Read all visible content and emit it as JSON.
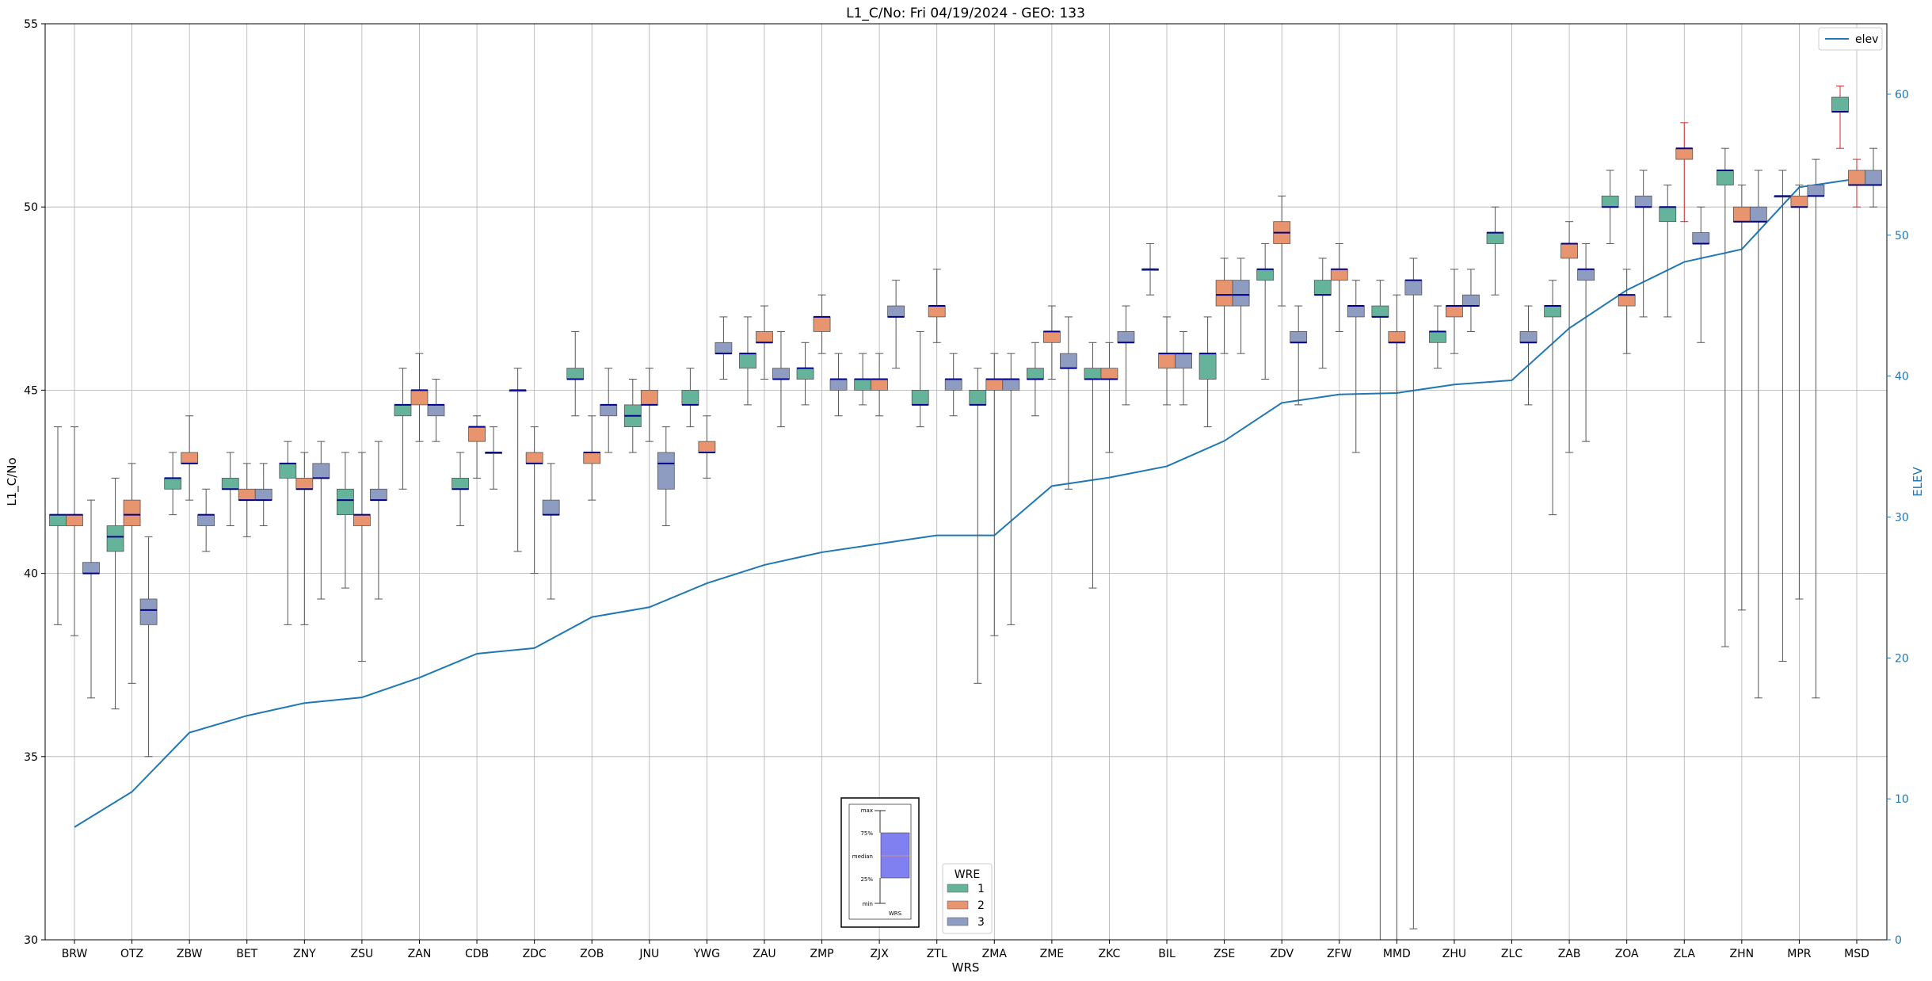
{
  "chart_data": {
    "type": "box",
    "title": "L1_C/No: Fri 04/19/2024 - GEO: 133",
    "xlabel": "WRS",
    "ylabel": "L1_C/No",
    "ylabel_right": "ELEV",
    "ylim": [
      30,
      55
    ],
    "ylim_right": [
      0,
      65
    ],
    "yticks": [
      30,
      35,
      40,
      45,
      50,
      55
    ],
    "yticks_right": [
      0,
      10,
      20,
      30,
      40,
      50,
      60
    ],
    "grid": true,
    "colors": {
      "1": "#66b39b",
      "2": "#e8946e",
      "3": "#8f9cc2",
      "median": "#00008b",
      "elev": "#1f77b4",
      "outlier_whisker": "#d62728"
    },
    "categories": [
      "BRW",
      "OTZ",
      "ZBW",
      "BET",
      "ZNY",
      "ZSU",
      "ZAN",
      "CDB",
      "ZDC",
      "ZOB",
      "JNU",
      "YWG",
      "ZAU",
      "ZMP",
      "ZJX",
      "ZTL",
      "ZMA",
      "ZME",
      "ZKC",
      "BIL",
      "ZSE",
      "ZDV",
      "ZFW",
      "MMD",
      "ZHU",
      "ZLC",
      "ZAB",
      "ZOA",
      "ZLA",
      "ZHN",
      "MPR",
      "MSD"
    ],
    "elev_series": {
      "name": "elev",
      "values": [
        8.0,
        10.5,
        14.7,
        15.9,
        16.8,
        17.2,
        18.6,
        20.3,
        20.7,
        22.9,
        23.6,
        25.3,
        26.6,
        27.5,
        28.1,
        28.7,
        28.7,
        32.2,
        32.8,
        33.6,
        35.4,
        38.1,
        38.7,
        38.8,
        39.4,
        39.7,
        43.4,
        46.1,
        48.1,
        49.0,
        53.4,
        54.0
      ]
    },
    "series": [
      {
        "name": "1",
        "boxes": [
          {
            "cat": "BRW",
            "min": 38.6,
            "q1": 41.3,
            "median": 41.6,
            "q3": 41.6,
            "max": 44
          },
          {
            "cat": "OTZ",
            "min": 36.3,
            "q1": 40.6,
            "median": 41.0,
            "q3": 41.3,
            "max": 42.6
          },
          {
            "cat": "ZBW",
            "min": 41.6,
            "q1": 42.3,
            "median": 42.6,
            "q3": 42.6,
            "max": 43.3
          },
          {
            "cat": "BET",
            "min": 41.3,
            "q1": 42.3,
            "median": 42.3,
            "q3": 42.6,
            "max": 43.3
          },
          {
            "cat": "ZNY",
            "min": 38.6,
            "q1": 42.6,
            "median": 43.0,
            "q3": 43.0,
            "max": 43.6
          },
          {
            "cat": "ZSU",
            "min": 39.6,
            "q1": 41.6,
            "median": 42.0,
            "q3": 42.3,
            "max": 43.3
          },
          {
            "cat": "ZAN",
            "min": 42.3,
            "q1": 44.3,
            "median": 44.6,
            "q3": 44.6,
            "max": 45.6
          },
          {
            "cat": "CDB",
            "min": 41.3,
            "q1": 42.3,
            "median": 42.3,
            "q3": 42.6,
            "max": 43.3
          },
          {
            "cat": "ZDC",
            "min": 40.6,
            "q1": 45.0,
            "median": 45.0,
            "q3": 45.0,
            "max": 45.6
          },
          {
            "cat": "ZOB",
            "min": 44.3,
            "q1": 45.3,
            "median": 45.3,
            "q3": 45.6,
            "max": 46.6
          },
          {
            "cat": "JNU",
            "min": 43.3,
            "q1": 44.0,
            "median": 44.3,
            "q3": 44.6,
            "max": 45.3
          },
          {
            "cat": "YWG",
            "min": 44.0,
            "q1": 44.6,
            "median": 44.6,
            "q3": 45.0,
            "max": 45.6
          },
          {
            "cat": "ZAU",
            "min": 44.6,
            "q1": 45.6,
            "median": 46.0,
            "q3": 46.0,
            "max": 47.0
          },
          {
            "cat": "ZMP",
            "min": 44.6,
            "q1": 45.3,
            "median": 45.6,
            "q3": 45.6,
            "max": 46.3
          },
          {
            "cat": "ZJX",
            "min": 44.6,
            "q1": 45.0,
            "median": 45.3,
            "q3": 45.3,
            "max": 46.0
          },
          {
            "cat": "ZTL",
            "min": 44.0,
            "q1": 44.6,
            "median": 44.6,
            "q3": 45.0,
            "max": 46.6
          },
          {
            "cat": "ZMA",
            "min": 37.0,
            "q1": 44.6,
            "median": 44.6,
            "q3": 45.0,
            "max": 45.6
          },
          {
            "cat": "ZME",
            "min": 44.3,
            "q1": 45.3,
            "median": 45.3,
            "q3": 45.6,
            "max": 46.3
          },
          {
            "cat": "ZKC",
            "min": 39.6,
            "q1": 45.3,
            "median": 45.3,
            "q3": 45.6,
            "max": 46.3
          },
          {
            "cat": "BIL",
            "min": 47.6,
            "q1": 48.3,
            "median": 48.3,
            "q3": 48.3,
            "max": 49.0
          },
          {
            "cat": "ZSE",
            "min": 44.0,
            "q1": 45.3,
            "median": 46.0,
            "q3": 46.0,
            "max": 47.0
          },
          {
            "cat": "ZDV",
            "min": 45.3,
            "q1": 48.0,
            "median": 48.3,
            "q3": 48.3,
            "max": 49.0
          },
          {
            "cat": "ZFW",
            "min": 45.6,
            "q1": 47.6,
            "median": 47.6,
            "q3": 48.0,
            "max": 48.6
          },
          {
            "cat": "MMD",
            "min": 30.0,
            "q1": 47.0,
            "median": 47.0,
            "q3": 47.3,
            "max": 48.0
          },
          {
            "cat": "ZHU",
            "min": 45.6,
            "q1": 46.3,
            "median": 46.6,
            "q3": 46.6,
            "max": 47.3
          },
          {
            "cat": "ZLC",
            "min": 47.6,
            "q1": 49.0,
            "median": 49.3,
            "q3": 49.3,
            "max": 50.0
          },
          {
            "cat": "ZAB",
            "min": 41.6,
            "q1": 47.0,
            "median": 47.3,
            "q3": 47.3,
            "max": 48.0
          },
          {
            "cat": "ZOA",
            "min": 49.0,
            "q1": 50.0,
            "median": 50.0,
            "q3": 50.3,
            "max": 51.0
          },
          {
            "cat": "ZLA",
            "min": 47.0,
            "q1": 49.6,
            "median": 50.0,
            "q3": 50.0,
            "max": 50.6
          },
          {
            "cat": "ZHN",
            "min": 38.0,
            "q1": 50.6,
            "median": 51.0,
            "q3": 51.0,
            "max": 51.6
          },
          {
            "cat": "MPR",
            "min": 37.6,
            "q1": 50.3,
            "median": 50.3,
            "q3": 50.3,
            "max": 51.0
          },
          {
            "cat": "MSD",
            "min": 51.6,
            "q1": 52.6,
            "median": 52.6,
            "q3": 53.0,
            "max": 53.3
          }
        ]
      },
      {
        "name": "2",
        "boxes": [
          {
            "cat": "BRW",
            "min": 38.3,
            "q1": 41.3,
            "median": 41.6,
            "q3": 41.6,
            "max": 44
          },
          {
            "cat": "OTZ",
            "min": 37.0,
            "q1": 41.3,
            "median": 41.6,
            "q3": 42.0,
            "max": 43.0
          },
          {
            "cat": "ZBW",
            "min": 42.0,
            "q1": 43.0,
            "median": 43.0,
            "q3": 43.3,
            "max": 44.3
          },
          {
            "cat": "BET",
            "min": 41.0,
            "q1": 42.0,
            "median": 42.0,
            "q3": 42.3,
            "max": 43.0
          },
          {
            "cat": "ZNY",
            "min": 38.6,
            "q1": 42.3,
            "median": 42.3,
            "q3": 42.6,
            "max": 43.3
          },
          {
            "cat": "ZSU",
            "min": 37.6,
            "q1": 41.3,
            "median": 41.6,
            "q3": 41.6,
            "max": 43.3
          },
          {
            "cat": "ZAN",
            "min": 43.6,
            "q1": 44.6,
            "median": 45.0,
            "q3": 45.0,
            "max": 46.0
          },
          {
            "cat": "CDB",
            "min": 42.6,
            "q1": 43.6,
            "median": 44.0,
            "q3": 44.0,
            "max": 44.3
          },
          {
            "cat": "ZDC",
            "min": 40.0,
            "q1": 43.0,
            "median": 43.0,
            "q3": 43.3,
            "max": 44.0
          },
          {
            "cat": "ZOB",
            "min": 42.0,
            "q1": 43.0,
            "median": 43.3,
            "q3": 43.3,
            "max": 44.3
          },
          {
            "cat": "JNU",
            "min": 43.6,
            "q1": 44.6,
            "median": 44.6,
            "q3": 45.0,
            "max": 45.6
          },
          {
            "cat": "YWG",
            "min": 42.6,
            "q1": 43.3,
            "median": 43.3,
            "q3": 43.6,
            "max": 44.3
          },
          {
            "cat": "ZAU",
            "min": 45.3,
            "q1": 46.3,
            "median": 46.3,
            "q3": 46.6,
            "max": 47.3
          },
          {
            "cat": "ZMP",
            "min": 46.0,
            "q1": 46.6,
            "median": 47.0,
            "q3": 47.0,
            "max": 47.6
          },
          {
            "cat": "ZJX",
            "min": 44.3,
            "q1": 45.0,
            "median": 45.3,
            "q3": 45.3,
            "max": 46.0
          },
          {
            "cat": "ZTL",
            "min": 46.3,
            "q1": 47.0,
            "median": 47.3,
            "q3": 47.3,
            "max": 48.3
          },
          {
            "cat": "ZMA",
            "min": 38.3,
            "q1": 45.0,
            "median": 45.3,
            "q3": 45.3,
            "max": 46.0
          },
          {
            "cat": "ZME",
            "min": 45.3,
            "q1": 46.3,
            "median": 46.6,
            "q3": 46.6,
            "max": 47.3
          },
          {
            "cat": "ZKC",
            "min": 43.3,
            "q1": 45.3,
            "median": 45.3,
            "q3": 45.6,
            "max": 46.3
          },
          {
            "cat": "BIL",
            "min": 44.6,
            "q1": 45.6,
            "median": 46.0,
            "q3": 46.0,
            "max": 47.0
          },
          {
            "cat": "ZSE",
            "min": 46.0,
            "q1": 47.3,
            "median": 47.6,
            "q3": 48.0,
            "max": 48.6
          },
          {
            "cat": "ZDV",
            "min": 47.3,
            "q1": 49.0,
            "median": 49.3,
            "q3": 49.6,
            "max": 50.3
          },
          {
            "cat": "ZFW",
            "min": 46.6,
            "q1": 48.0,
            "median": 48.3,
            "q3": 48.3,
            "max": 49.0
          },
          {
            "cat": "MMD",
            "min": 30.0,
            "q1": 46.3,
            "median": 46.3,
            "q3": 46.6,
            "max": 47.6
          },
          {
            "cat": "ZHU",
            "min": 46.0,
            "q1": 47.0,
            "median": 47.3,
            "q3": 47.3,
            "max": 48.3
          },
          {
            "cat": "ZLC",
            "min": null,
            "q1": null,
            "median": null,
            "q3": null,
            "max": null
          },
          {
            "cat": "ZAB",
            "min": 43.3,
            "q1": 48.6,
            "median": 49.0,
            "q3": 49.0,
            "max": 49.6
          },
          {
            "cat": "ZOA",
            "min": 46.0,
            "q1": 47.3,
            "median": 47.6,
            "q3": 47.6,
            "max": 48.3
          },
          {
            "cat": "ZLA",
            "min": 49.6,
            "q1": 51.3,
            "median": 51.6,
            "q3": 51.6,
            "max": 52.3
          },
          {
            "cat": "ZHN",
            "min": 39.0,
            "q1": 49.6,
            "median": 49.6,
            "q3": 50.0,
            "max": 50.6
          },
          {
            "cat": "MPR",
            "min": 39.3,
            "q1": 50.0,
            "median": 50.0,
            "q3": 50.3,
            "max": 50.6
          },
          {
            "cat": "MSD",
            "min": 50.0,
            "q1": 50.6,
            "median": 50.6,
            "q3": 51.0,
            "max": 51.3
          }
        ]
      },
      {
        "name": "3",
        "boxes": [
          {
            "cat": "BRW",
            "min": 36.6,
            "q1": 40.0,
            "median": 40.0,
            "q3": 40.3,
            "max": 42.0
          },
          {
            "cat": "OTZ",
            "min": 35.0,
            "q1": 38.6,
            "median": 39.0,
            "q3": 39.3,
            "max": 41.0
          },
          {
            "cat": "ZBW",
            "min": 40.6,
            "q1": 41.3,
            "median": 41.6,
            "q3": 41.6,
            "max": 42.3
          },
          {
            "cat": "BET",
            "min": 41.3,
            "q1": 42.0,
            "median": 42.0,
            "q3": 42.3,
            "max": 43.0
          },
          {
            "cat": "ZNY",
            "min": 39.3,
            "q1": 42.6,
            "median": 42.6,
            "q3": 43.0,
            "max": 43.6
          },
          {
            "cat": "ZSU",
            "min": 39.3,
            "q1": 42.0,
            "median": 42.0,
            "q3": 42.3,
            "max": 43.6
          },
          {
            "cat": "ZAN",
            "min": 43.6,
            "q1": 44.3,
            "median": 44.6,
            "q3": 44.6,
            "max": 45.3
          },
          {
            "cat": "CDB",
            "min": 42.3,
            "q1": 43.3,
            "median": 43.3,
            "q3": 43.3,
            "max": 44.0
          },
          {
            "cat": "ZDC",
            "min": 39.3,
            "q1": 41.6,
            "median": 41.6,
            "q3": 42.0,
            "max": 43.0
          },
          {
            "cat": "ZOB",
            "min": 43.3,
            "q1": 44.3,
            "median": 44.6,
            "q3": 44.6,
            "max": 45.6
          },
          {
            "cat": "JNU",
            "min": 41.3,
            "q1": 42.3,
            "median": 43.0,
            "q3": 43.3,
            "max": 44.0
          },
          {
            "cat": "YWG",
            "min": 45.3,
            "q1": 46.0,
            "median": 46.0,
            "q3": 46.3,
            "max": 47.0
          },
          {
            "cat": "ZAU",
            "min": 44.0,
            "q1": 45.3,
            "median": 45.3,
            "q3": 45.6,
            "max": 46.6
          },
          {
            "cat": "ZMP",
            "min": 44.3,
            "q1": 45.0,
            "median": 45.3,
            "q3": 45.3,
            "max": 46.0
          },
          {
            "cat": "ZJX",
            "min": 45.6,
            "q1": 47.0,
            "median": 47.0,
            "q3": 47.3,
            "max": 48.0
          },
          {
            "cat": "ZTL",
            "min": 44.3,
            "q1": 45.0,
            "median": 45.3,
            "q3": 45.3,
            "max": 46.0
          },
          {
            "cat": "ZMA",
            "min": 38.6,
            "q1": 45.0,
            "median": 45.3,
            "q3": 45.3,
            "max": 46.0
          },
          {
            "cat": "ZME",
            "min": 42.3,
            "q1": 45.6,
            "median": 45.6,
            "q3": 46.0,
            "max": 47.0
          },
          {
            "cat": "ZKC",
            "min": 44.6,
            "q1": 46.3,
            "median": 46.3,
            "q3": 46.6,
            "max": 47.3
          },
          {
            "cat": "BIL",
            "min": 44.6,
            "q1": 45.6,
            "median": 46.0,
            "q3": 46.0,
            "max": 46.6
          },
          {
            "cat": "ZSE",
            "min": 46.0,
            "q1": 47.3,
            "median": 47.6,
            "q3": 48.0,
            "max": 48.6
          },
          {
            "cat": "ZDV",
            "min": 44.6,
            "q1": 46.3,
            "median": 46.3,
            "q3": 46.6,
            "max": 47.3
          },
          {
            "cat": "ZFW",
            "min": 43.3,
            "q1": 47.0,
            "median": 47.3,
            "q3": 47.3,
            "max": 48.0
          },
          {
            "cat": "MMD",
            "min": 30.3,
            "q1": 47.6,
            "median": 48.0,
            "q3": 48.0,
            "max": 48.6
          },
          {
            "cat": "ZHU",
            "min": 46.6,
            "q1": 47.3,
            "median": 47.3,
            "q3": 47.6,
            "max": 48.3
          },
          {
            "cat": "ZLC",
            "min": 44.6,
            "q1": 46.3,
            "median": 46.3,
            "q3": 46.6,
            "max": 47.3
          },
          {
            "cat": "ZAB",
            "min": 43.6,
            "q1": 48.0,
            "median": 48.3,
            "q3": 48.3,
            "max": 49.0
          },
          {
            "cat": "ZOA",
            "min": 47.0,
            "q1": 50.0,
            "median": 50.0,
            "q3": 50.3,
            "max": 51.0
          },
          {
            "cat": "ZLA",
            "min": 46.3,
            "q1": 49.0,
            "median": 49.0,
            "q3": 49.3,
            "max": 50.0
          },
          {
            "cat": "ZHN",
            "min": 36.6,
            "q1": 49.6,
            "median": 49.6,
            "q3": 50.0,
            "max": 51.0
          },
          {
            "cat": "MPR",
            "min": 36.6,
            "q1": 50.3,
            "median": 50.3,
            "q3": 50.6,
            "max": 51.3
          },
          {
            "cat": "MSD",
            "min": 50.0,
            "q1": 50.6,
            "median": 50.6,
            "q3": 51.0,
            "max": 51.6
          }
        ]
      }
    ],
    "legend_elev": {
      "label": "elev",
      "position": "top-right"
    },
    "legend_wre": {
      "title": "WRE",
      "entries": [
        "1",
        "2",
        "3"
      ],
      "position": "bottom-center"
    },
    "key_box": {
      "labels": [
        "max",
        "75%",
        "median",
        "25%",
        "min"
      ],
      "footer": "WRS"
    }
  }
}
